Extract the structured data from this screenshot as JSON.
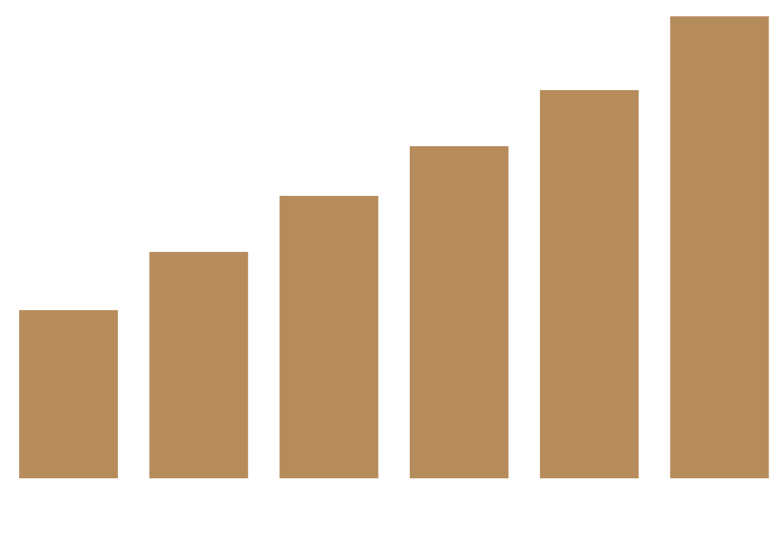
{
  "chart_data": {
    "type": "bar",
    "categories": [
      "",
      "",
      "",
      "",
      "",
      ""
    ],
    "values": [
      237,
      319,
      398,
      468,
      547,
      651
    ],
    "ylim": [
      0,
      651
    ],
    "grid": false,
    "legend": "none",
    "bar_color": "#b78c5c"
  }
}
